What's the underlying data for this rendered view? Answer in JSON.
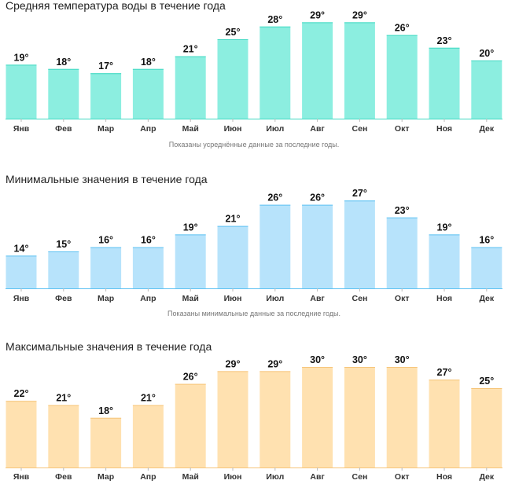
{
  "chart_data": [
    {
      "type": "bar",
      "title": "Средняя температура воды в течение года",
      "categories": [
        "Янв",
        "Фев",
        "Мар",
        "Апр",
        "Май",
        "Июн",
        "Июл",
        "Авг",
        "Сен",
        "Окт",
        "Ноя",
        "Дек"
      ],
      "values": [
        19,
        18,
        17,
        18,
        21,
        25,
        28,
        29,
        29,
        26,
        23,
        20
      ],
      "unit": "°",
      "note": "Показаны усреднённые данные за последние годы.",
      "color": "#8ceee0",
      "edge": "#3fd8c2"
    },
    {
      "type": "bar",
      "title": "Минимальные значения в течение года",
      "categories": [
        "Янв",
        "Фев",
        "Мар",
        "Апр",
        "Май",
        "Июн",
        "Июл",
        "Авг",
        "Сен",
        "Окт",
        "Ноя",
        "Дек"
      ],
      "values": [
        14,
        15,
        16,
        16,
        19,
        21,
        26,
        26,
        27,
        23,
        19,
        16
      ],
      "unit": "°",
      "note": "Показаны минимальные данные за последние годы.",
      "color": "#b7e3fb",
      "edge": "#5ec2f2"
    },
    {
      "type": "bar",
      "title": "Максимальные значения в течение года",
      "categories": [
        "Янв",
        "Фев",
        "Мар",
        "Апр",
        "Май",
        "Июн",
        "Июл",
        "Авг",
        "Сен",
        "Окт",
        "Ноя",
        "Дек"
      ],
      "values": [
        22,
        21,
        18,
        21,
        26,
        29,
        29,
        30,
        30,
        30,
        27,
        25
      ],
      "unit": "°",
      "note": "",
      "color": "#ffe1b0",
      "edge": "#f6c57a"
    }
  ]
}
